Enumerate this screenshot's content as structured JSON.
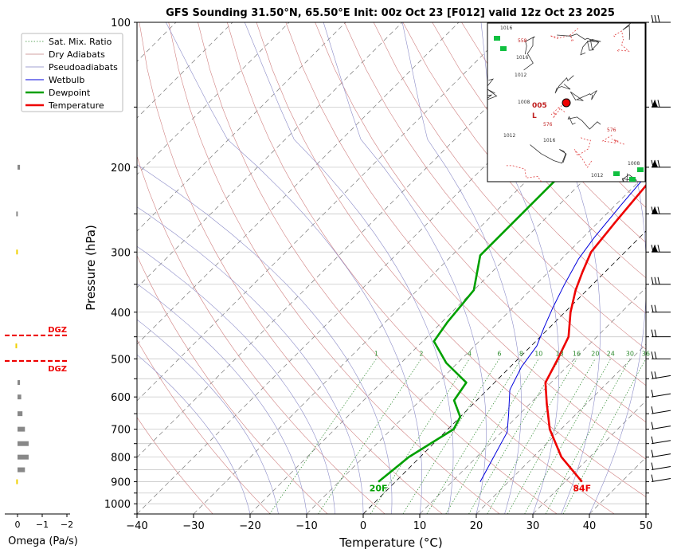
{
  "chart_data": {
    "type": "line",
    "title": "GFS Sounding 31.50°N, 65.50°E Init: 00z Oct 23 [F012] valid 12z Oct 23 2025",
    "xlabel": "Temperature (°C)",
    "ylabel": "Pressure (hPa)",
    "x_ticks": [
      "−40",
      "−30",
      "−20",
      "−10",
      "0",
      "10",
      "20",
      "30",
      "40",
      "50"
    ],
    "x_tick_values": [
      -40,
      -30,
      -20,
      -10,
      0,
      10,
      20,
      30,
      40,
      50
    ],
    "xlim": [
      -40,
      50
    ],
    "ylim": [
      1050,
      100
    ],
    "y_scale": "log",
    "y_ticks": [
      "100",
      "200",
      "300",
      "400",
      "500",
      "600",
      "700",
      "800",
      "900",
      "1000"
    ],
    "y_tick_values": [
      100,
      200,
      300,
      400,
      500,
      600,
      700,
      800,
      900,
      1000
    ],
    "legend": {
      "placement": "top-left",
      "entries": [
        {
          "label": "Sat. Mix. Ratio",
          "color": "#2e8b2e",
          "style": "dotted"
        },
        {
          "label": "Dry Adiabats",
          "color": "#c08080",
          "style": "solid-thin"
        },
        {
          "label": "Pseudoadiabats",
          "color": "#8080c0",
          "style": "solid-thin"
        },
        {
          "label": "Wetbulb",
          "color": "#0000dd",
          "style": "solid"
        },
        {
          "label": "Dewpoint",
          "color": "#00a000",
          "style": "thick"
        },
        {
          "label": "Temperature",
          "color": "#ee0000",
          "style": "thick"
        }
      ]
    },
    "series": [
      {
        "name": "Temperature",
        "color": "#ee0000",
        "points": [
          [
            33,
            900
          ],
          [
            25,
            800
          ],
          [
            18,
            700
          ],
          [
            13,
            620
          ],
          [
            9,
            560
          ],
          [
            7,
            500
          ],
          [
            5,
            450
          ],
          [
            1,
            400
          ],
          [
            -2,
            360
          ],
          [
            -4,
            330
          ],
          [
            -6,
            300
          ],
          [
            -7,
            260
          ],
          [
            -8,
            220
          ],
          [
            -9,
            190
          ],
          [
            -10,
            160
          ],
          [
            -11,
            140
          ],
          [
            -9,
            125
          ],
          [
            -6,
            110
          ],
          [
            -4,
            100
          ]
        ]
      },
      {
        "name": "Dewpoint",
        "color": "#00a000",
        "points": [
          [
            -3,
            900
          ],
          [
            -2,
            800
          ],
          [
            1,
            700
          ],
          [
            0,
            660
          ],
          [
            -4,
            610
          ],
          [
            -5,
            560
          ],
          [
            -12,
            510
          ],
          [
            -18,
            460
          ],
          [
            -19,
            420
          ],
          [
            -20,
            360
          ],
          [
            -25,
            305
          ],
          [
            -25,
            270
          ],
          [
            -25,
            240
          ],
          [
            -25,
            200
          ],
          [
            -25,
            170
          ],
          [
            -25,
            140
          ],
          [
            -22,
            125
          ],
          [
            -19,
            110
          ],
          [
            -17,
            100
          ]
        ]
      },
      {
        "name": "Wetbulb",
        "color": "#0000dd",
        "points": [
          [
            15,
            900
          ],
          [
            13,
            800
          ],
          [
            11,
            710
          ],
          [
            8,
            650
          ],
          [
            4,
            580
          ],
          [
            2,
            520
          ],
          [
            1,
            470
          ],
          [
            -1,
            430
          ],
          [
            -3,
            390
          ],
          [
            -5,
            350
          ],
          [
            -7,
            310
          ],
          [
            -8,
            280
          ],
          [
            -9,
            240
          ],
          [
            -10,
            200
          ],
          [
            -11,
            170
          ],
          [
            -11,
            140
          ]
        ]
      }
    ],
    "surface_labels": [
      {
        "text": "20F",
        "color": "#00a000"
      },
      {
        "text": "84F",
        "color": "#ee0000"
      }
    ],
    "mixing_ratio_labels": [
      "1",
      "2",
      "4",
      "6",
      "8",
      "10",
      "13",
      "16",
      "20",
      "24",
      "30",
      "36"
    ],
    "omega": {
      "label": "Omega (Pa/s)",
      "ticks": [
        "0",
        "−1",
        "−2"
      ],
      "tick_values": [
        0,
        -1,
        -2
      ],
      "bars": [
        {
          "p": 200,
          "v": -0.1,
          "color": "#888888"
        },
        {
          "p": 250,
          "v": 0.02,
          "color": "#888888"
        },
        {
          "p": 300,
          "v": 0.02,
          "color": "#f0d000"
        },
        {
          "p": 470,
          "v": 0.05,
          "color": "#f0d000"
        },
        {
          "p": 560,
          "v": -0.1,
          "color": "#888888"
        },
        {
          "p": 600,
          "v": -0.15,
          "color": "#888888"
        },
        {
          "p": 650,
          "v": -0.2,
          "color": "#888888"
        },
        {
          "p": 700,
          "v": -0.3,
          "color": "#888888"
        },
        {
          "p": 750,
          "v": -0.45,
          "color": "#888888"
        },
        {
          "p": 800,
          "v": -0.45,
          "color": "#888888"
        },
        {
          "p": 850,
          "v": -0.3,
          "color": "#888888"
        },
        {
          "p": 900,
          "v": 0.02,
          "color": "#f0d000"
        }
      ],
      "dgz": [
        {
          "text": "DGZ",
          "p": 447,
          "color": "#ee0000"
        },
        {
          "text": "DGZ",
          "p": 505,
          "color": "#ee0000"
        }
      ]
    },
    "grid": true
  },
  "inset_map": {
    "labels": [
      "1016",
      "558",
      "1016",
      "1012",
      "1008",
      "005",
      "L",
      "576",
      "1012",
      "1016",
      "576",
      "1008",
      "1012"
    ]
  }
}
